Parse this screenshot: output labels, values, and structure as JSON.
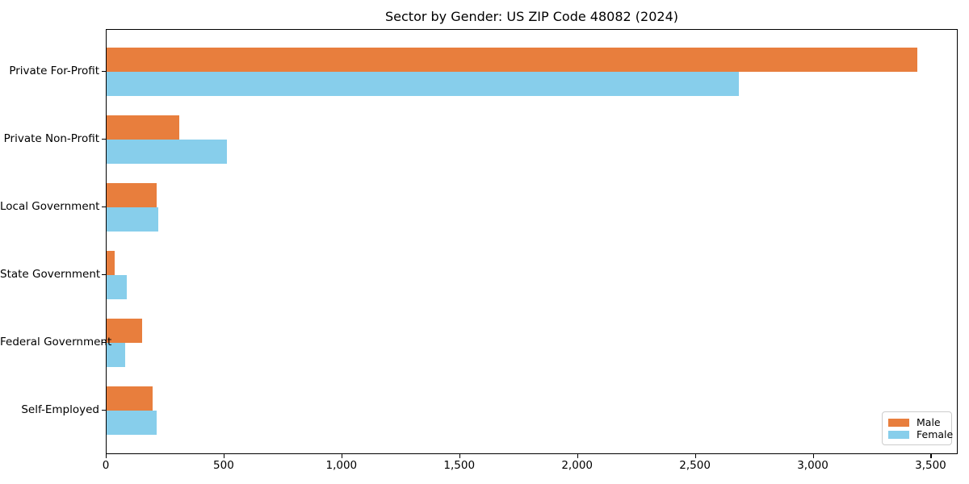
{
  "chart_data": {
    "type": "bar",
    "orientation": "horizontal",
    "title": "Sector by Gender: US ZIP Code 48082 (2024)",
    "categories": [
      "Private For-Profit",
      "Private Non-Profit",
      "Local Government",
      "State Government",
      "Federal Government",
      "Self-Employed"
    ],
    "series": [
      {
        "name": "Male",
        "color": "#e87e3d",
        "values": [
          3440,
          309,
          212,
          33,
          152,
          195
        ]
      },
      {
        "name": "Female",
        "color": "#87ceeb",
        "values": [
          2682,
          512,
          221,
          86,
          78,
          214
        ]
      }
    ],
    "xlim": [
      0,
      3615
    ],
    "x_ticks": [
      0,
      500,
      1000,
      1500,
      2000,
      2500,
      3000,
      3500
    ],
    "x_tick_labels": [
      "0",
      "500",
      "1,000",
      "1,500",
      "2,000",
      "2,500",
      "3,000",
      "3,500"
    ],
    "xlabel": "",
    "ylabel": "",
    "grid": false,
    "legend": {
      "position": "lower right",
      "entries": [
        "Male",
        "Female"
      ]
    },
    "colors": {
      "male": "#e87e3d",
      "female": "#87ceeb",
      "spine": "#000000",
      "legend_border": "#cccccc",
      "background": "#ffffff"
    }
  }
}
